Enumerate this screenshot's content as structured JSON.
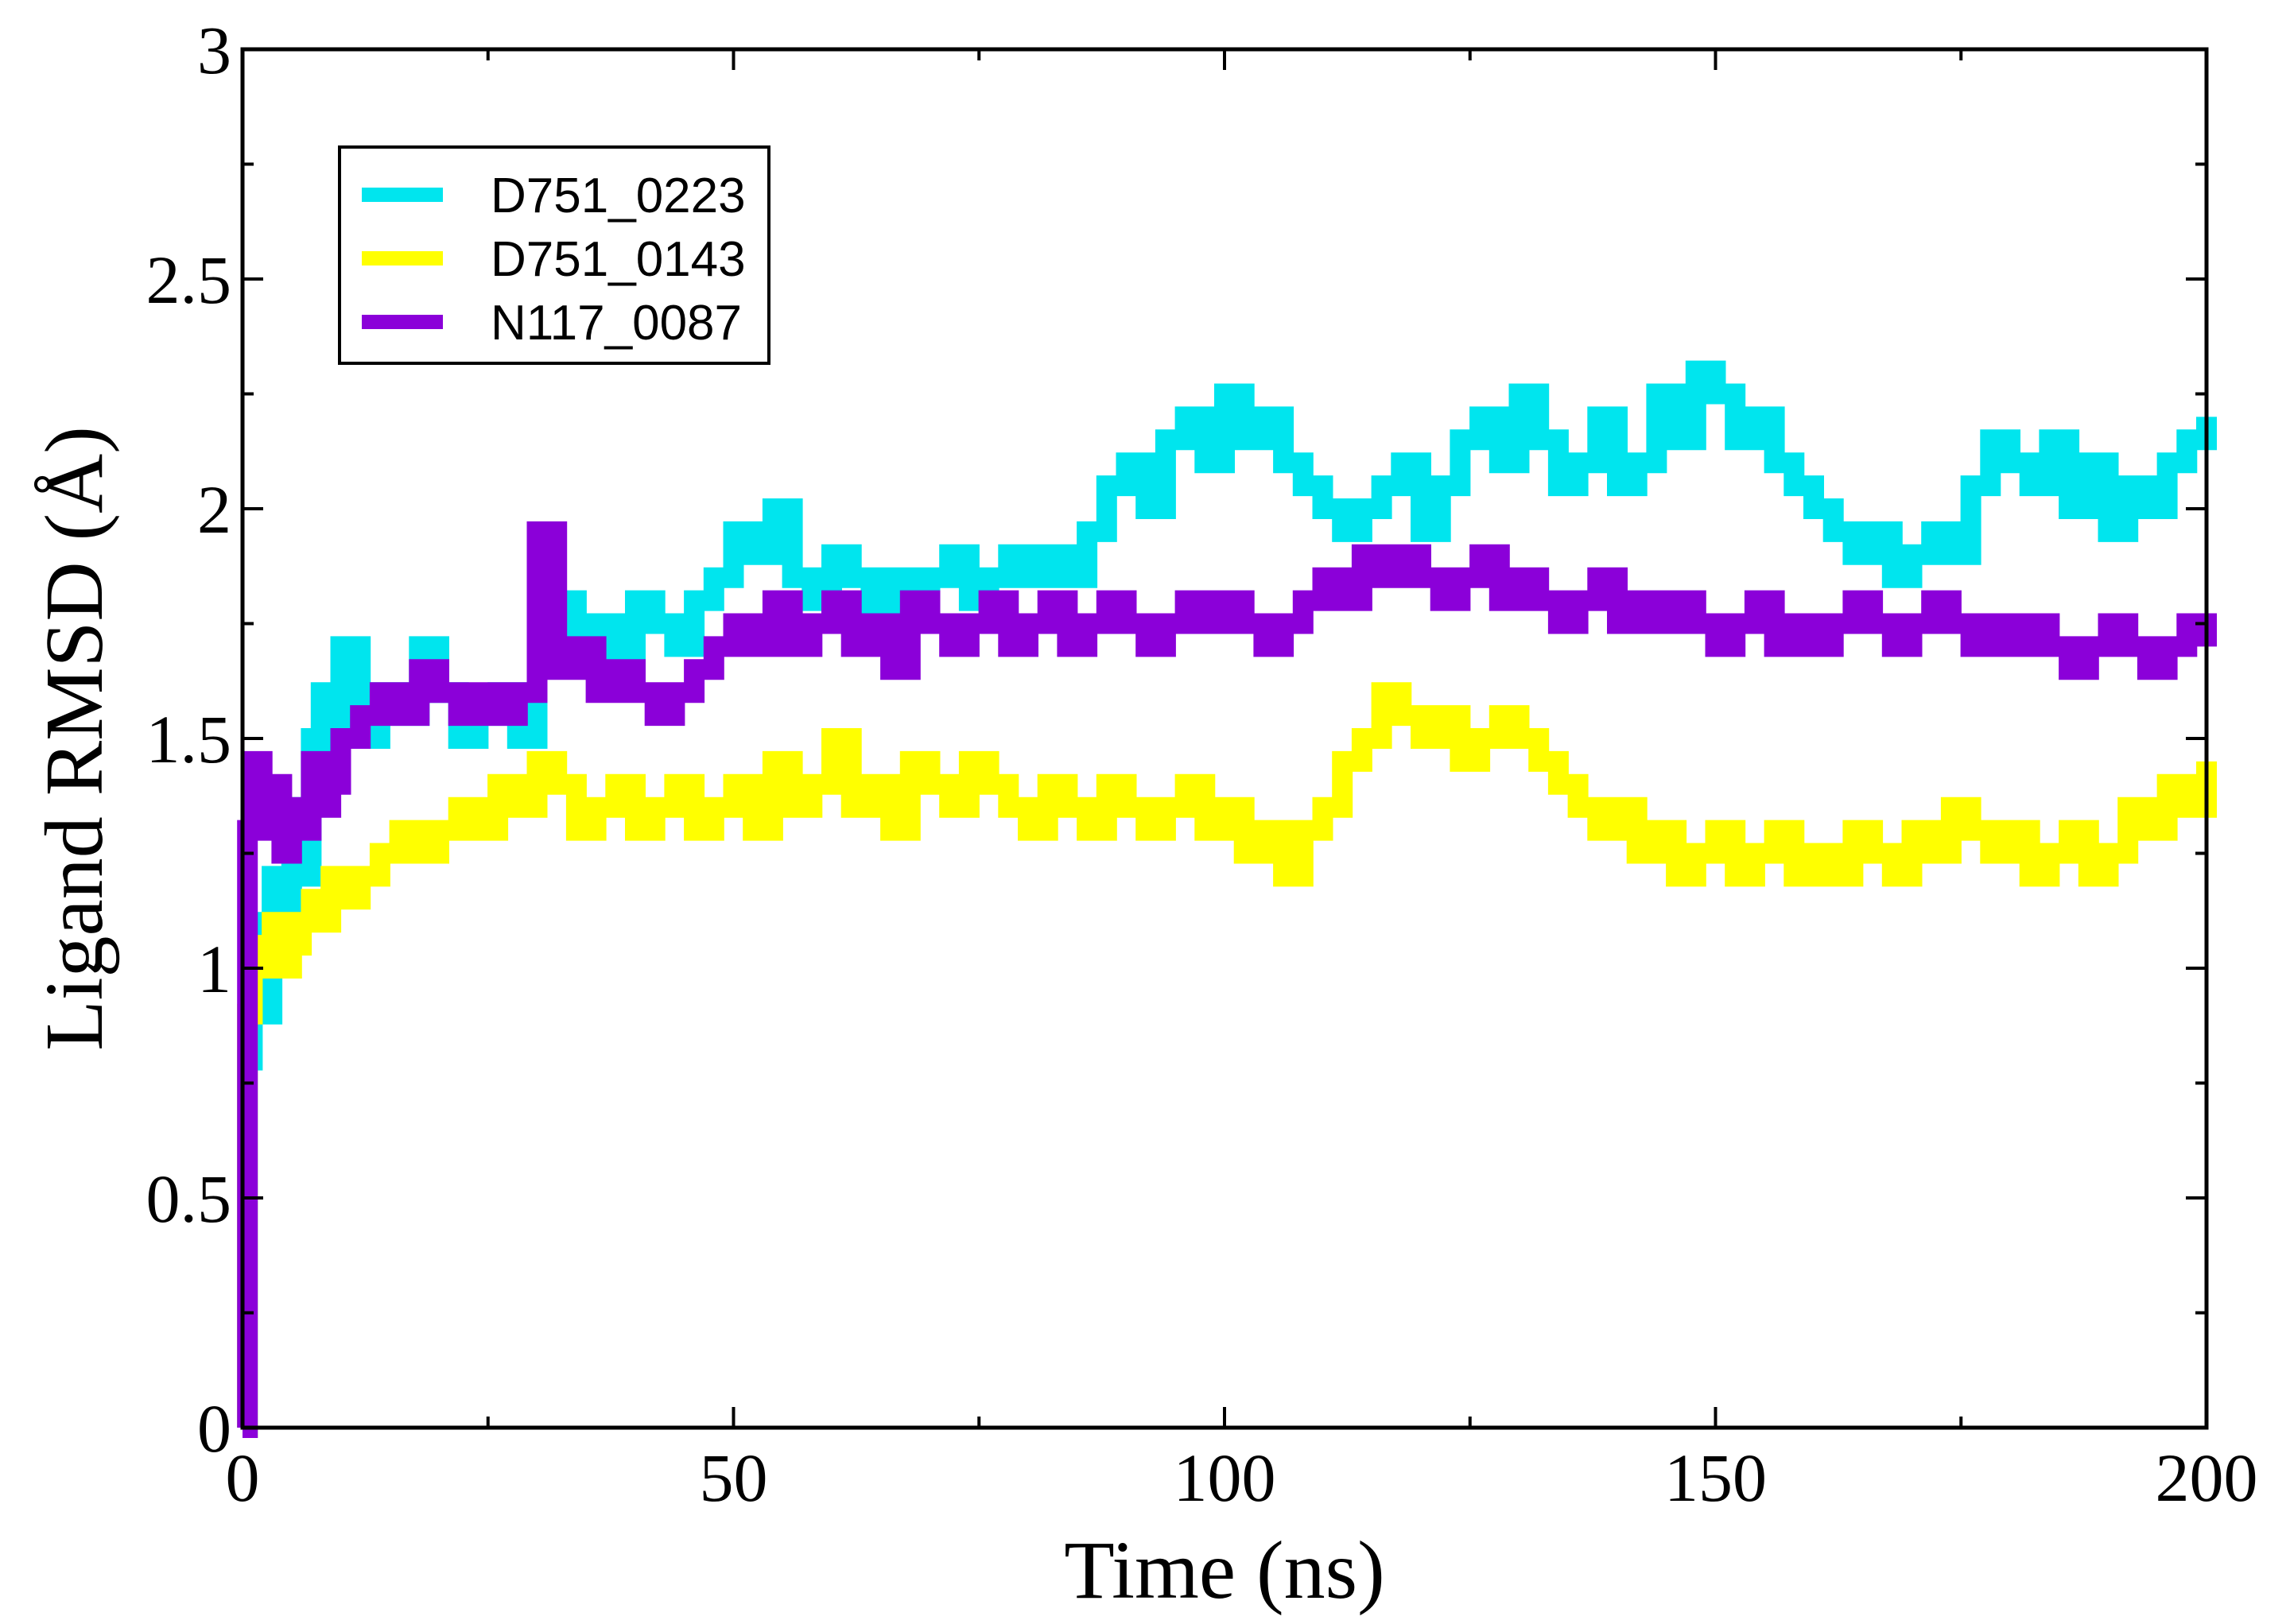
{
  "chart_data": {
    "type": "line",
    "title": "",
    "xlabel": "Time (ns)",
    "ylabel": "Ligand RMSD (Å)",
    "xlim": [
      0,
      200
    ],
    "ylim": [
      0,
      3
    ],
    "xticks": [
      0,
      50,
      100,
      150,
      200
    ],
    "xtick_labels": [
      "0",
      "50",
      "100",
      "150",
      "200"
    ],
    "yticks": [
      0,
      0.5,
      1,
      1.5,
      2,
      2.5,
      3
    ],
    "ytick_labels": [
      "0",
      "0.5",
      "1",
      "1.5",
      "2",
      "2.5",
      "3"
    ],
    "grid": false,
    "legend_position": "top-left",
    "series": [
      {
        "name": "D751_0223",
        "color": "#00e5ee",
        "x": [
          0,
          0.5,
          1,
          2,
          3,
          4,
          5,
          6,
          7,
          8,
          9,
          10,
          12,
          14,
          16,
          18,
          20,
          22,
          24,
          26,
          28,
          30,
          32,
          34,
          36,
          38,
          40,
          42,
          44,
          46,
          48,
          50,
          52,
          54,
          56,
          58,
          60,
          62,
          64,
          66,
          68,
          70,
          72,
          74,
          76,
          78,
          80,
          82,
          84,
          86,
          88,
          90,
          92,
          94,
          96,
          98,
          100,
          102,
          104,
          106,
          108,
          110,
          112,
          114,
          116,
          118,
          120,
          122,
          124,
          126,
          128,
          130,
          132,
          134,
          136,
          138,
          140,
          142,
          144,
          146,
          148,
          150,
          152,
          154,
          156,
          158,
          160,
          162,
          164,
          166,
          168,
          170,
          172,
          174,
          176,
          178,
          180,
          182,
          184,
          186,
          188,
          190,
          192,
          194,
          196,
          198,
          200
        ],
        "y": [
          0.0,
          0.8,
          1.1,
          0.9,
          1.2,
          1.1,
          1.35,
          1.2,
          1.5,
          1.6,
          1.45,
          1.7,
          1.5,
          1.6,
          1.55,
          1.7,
          1.6,
          1.5,
          1.55,
          1.6,
          1.5,
          1.7,
          1.8,
          1.7,
          1.75,
          1.65,
          1.8,
          1.75,
          1.7,
          1.8,
          1.85,
          1.95,
          1.9,
          2.0,
          1.85,
          1.8,
          1.9,
          1.85,
          1.75,
          1.85,
          1.8,
          1.85,
          1.9,
          1.8,
          1.85,
          1.9,
          1.85,
          1.9,
          1.85,
          1.95,
          2.05,
          2.1,
          2.0,
          2.15,
          2.2,
          2.1,
          2.25,
          2.15,
          2.2,
          2.1,
          2.05,
          2.0,
          1.95,
          2.0,
          2.05,
          2.1,
          1.95,
          2.05,
          2.15,
          2.2,
          2.1,
          2.25,
          2.15,
          2.05,
          2.1,
          2.2,
          2.05,
          2.1,
          2.25,
          2.15,
          2.3,
          2.25,
          2.15,
          2.2,
          2.1,
          2.05,
          2.0,
          1.95,
          1.9,
          1.95,
          1.85,
          1.9,
          1.95,
          1.9,
          2.05,
          2.15,
          2.1,
          2.05,
          2.15,
          2.0,
          2.1,
          1.95,
          2.05,
          2.0,
          2.1,
          2.15,
          2.2
        ]
      },
      {
        "name": "D751_0143",
        "color": "#ffff00",
        "x": [
          0,
          0.5,
          1,
          2,
          3,
          4,
          5,
          6,
          7,
          8,
          9,
          10,
          12,
          14,
          16,
          18,
          20,
          22,
          24,
          26,
          28,
          30,
          32,
          34,
          36,
          38,
          40,
          42,
          44,
          46,
          48,
          50,
          52,
          54,
          56,
          58,
          60,
          62,
          64,
          66,
          68,
          70,
          72,
          74,
          76,
          78,
          80,
          82,
          84,
          86,
          88,
          90,
          92,
          94,
          96,
          98,
          100,
          102,
          104,
          106,
          108,
          110,
          112,
          114,
          116,
          118,
          120,
          122,
          124,
          126,
          128,
          130,
          132,
          134,
          136,
          138,
          140,
          142,
          144,
          146,
          148,
          150,
          152,
          154,
          156,
          158,
          160,
          162,
          164,
          166,
          168,
          170,
          172,
          174,
          176,
          178,
          180,
          182,
          184,
          186,
          188,
          190,
          192,
          194,
          196,
          198,
          200
        ],
        "y": [
          0.0,
          0.9,
          1.05,
          1.0,
          1.1,
          1.0,
          1.05,
          1.1,
          1.15,
          1.1,
          1.2,
          1.15,
          1.2,
          1.25,
          1.3,
          1.25,
          1.3,
          1.35,
          1.3,
          1.4,
          1.35,
          1.45,
          1.4,
          1.3,
          1.35,
          1.4,
          1.3,
          1.35,
          1.4,
          1.3,
          1.35,
          1.4,
          1.3,
          1.45,
          1.35,
          1.4,
          1.5,
          1.35,
          1.4,
          1.3,
          1.45,
          1.4,
          1.35,
          1.45,
          1.4,
          1.35,
          1.3,
          1.4,
          1.35,
          1.3,
          1.4,
          1.35,
          1.3,
          1.35,
          1.4,
          1.3,
          1.35,
          1.25,
          1.3,
          1.2,
          1.3,
          1.35,
          1.45,
          1.5,
          1.6,
          1.55,
          1.5,
          1.55,
          1.45,
          1.5,
          1.55,
          1.5,
          1.45,
          1.4,
          1.35,
          1.3,
          1.35,
          1.25,
          1.3,
          1.2,
          1.25,
          1.3,
          1.2,
          1.25,
          1.3,
          1.2,
          1.25,
          1.2,
          1.3,
          1.25,
          1.2,
          1.3,
          1.25,
          1.35,
          1.3,
          1.25,
          1.3,
          1.2,
          1.25,
          1.3,
          1.2,
          1.25,
          1.35,
          1.3,
          1.4,
          1.35,
          1.45
        ]
      },
      {
        "name": "N117_0087",
        "color": "#8b00d9",
        "x": [
          0,
          0.5,
          1,
          2,
          3,
          4,
          5,
          6,
          7,
          8,
          9,
          10,
          12,
          14,
          16,
          18,
          20,
          22,
          24,
          26,
          28,
          30,
          32,
          34,
          36,
          38,
          40,
          42,
          44,
          46,
          48,
          50,
          52,
          54,
          56,
          58,
          60,
          62,
          64,
          66,
          68,
          70,
          72,
          74,
          76,
          78,
          80,
          82,
          84,
          86,
          88,
          90,
          92,
          94,
          96,
          98,
          100,
          102,
          104,
          106,
          108,
          110,
          112,
          114,
          116,
          118,
          120,
          122,
          124,
          126,
          128,
          130,
          132,
          134,
          136,
          138,
          140,
          142,
          144,
          146,
          148,
          150,
          152,
          154,
          156,
          158,
          160,
          162,
          164,
          166,
          168,
          170,
          172,
          174,
          176,
          178,
          180,
          182,
          184,
          186,
          188,
          190,
          192,
          194,
          196,
          198,
          200
        ],
        "y": [
          0.0,
          1.3,
          1.45,
          1.3,
          1.4,
          1.25,
          1.35,
          1.3,
          1.45,
          1.35,
          1.4,
          1.5,
          1.55,
          1.6,
          1.55,
          1.65,
          1.6,
          1.55,
          1.6,
          1.55,
          1.6,
          1.95,
          1.65,
          1.7,
          1.6,
          1.65,
          1.6,
          1.55,
          1.6,
          1.65,
          1.7,
          1.75,
          1.7,
          1.8,
          1.7,
          1.75,
          1.8,
          1.7,
          1.75,
          1.65,
          1.8,
          1.75,
          1.7,
          1.75,
          1.8,
          1.7,
          1.75,
          1.8,
          1.7,
          1.75,
          1.8,
          1.75,
          1.7,
          1.75,
          1.8,
          1.75,
          1.8,
          1.75,
          1.7,
          1.75,
          1.8,
          1.85,
          1.8,
          1.9,
          1.85,
          1.9,
          1.85,
          1.8,
          1.85,
          1.9,
          1.8,
          1.85,
          1.8,
          1.75,
          1.8,
          1.85,
          1.75,
          1.8,
          1.75,
          1.8,
          1.75,
          1.7,
          1.75,
          1.8,
          1.7,
          1.75,
          1.7,
          1.75,
          1.8,
          1.75,
          1.7,
          1.75,
          1.8,
          1.75,
          1.7,
          1.75,
          1.7,
          1.75,
          1.7,
          1.65,
          1.7,
          1.75,
          1.7,
          1.65,
          1.7,
          1.75,
          1.7
        ]
      }
    ]
  }
}
